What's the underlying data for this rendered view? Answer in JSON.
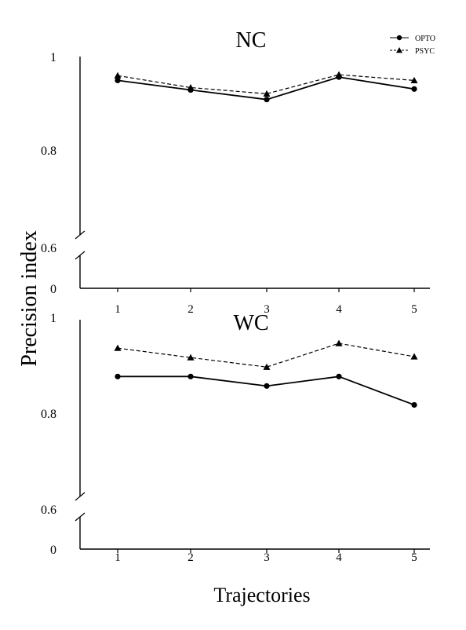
{
  "ylabel": "Precision index",
  "xlabel": "Trajectories",
  "legend": {
    "placement": "top-right",
    "entries": [
      {
        "label": "OPTO",
        "marker": "circle",
        "line": "solid"
      },
      {
        "label": "PSYC",
        "marker": "triangle",
        "line": "dashed"
      }
    ]
  },
  "chart_data": [
    {
      "type": "line",
      "title": "NC",
      "x": [
        1,
        2,
        3,
        4,
        5
      ],
      "series": [
        {
          "name": "OPTO",
          "values": [
            0.95,
            0.93,
            0.91,
            0.957,
            0.932
          ]
        },
        {
          "name": "PSYC",
          "values": [
            0.96,
            0.935,
            0.922,
            0.962,
            0.95
          ]
        }
      ],
      "ytick_labels": [
        "0",
        "0.6",
        "0.8",
        "1"
      ],
      "xtick_labels": [
        "1",
        "2",
        "3",
        "4",
        "5"
      ],
      "ylim": [
        0,
        1
      ],
      "axis_break": [
        0,
        0.6
      ],
      "grid": false
    },
    {
      "type": "line",
      "title": "WC",
      "x": [
        1,
        2,
        3,
        4,
        5
      ],
      "series": [
        {
          "name": "OPTO",
          "values": [
            0.88,
            0.88,
            0.86,
            0.88,
            0.82
          ]
        },
        {
          "name": "PSYC",
          "values": [
            0.94,
            0.92,
            0.9,
            0.95,
            0.922
          ]
        }
      ],
      "ytick_labels": [
        "0",
        "0.6",
        "0.8",
        "1"
      ],
      "xtick_labels": [
        "1",
        "2",
        "3",
        "4",
        "5"
      ],
      "ylim": [
        0,
        1
      ],
      "axis_break": [
        0,
        0.6
      ],
      "grid": false
    }
  ]
}
